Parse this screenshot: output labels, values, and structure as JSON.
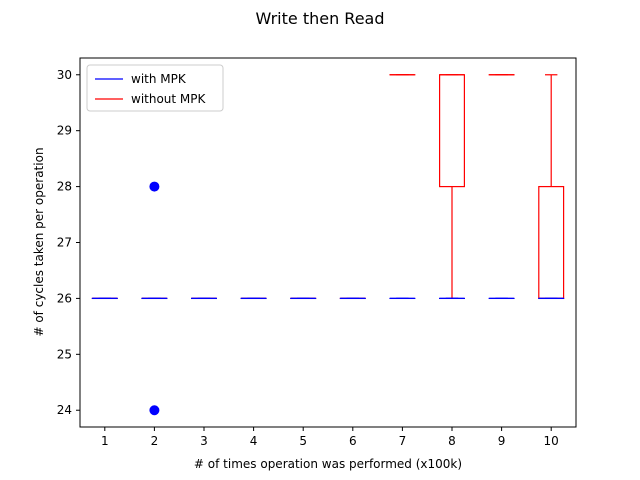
{
  "chart_data": {
    "type": "boxplot",
    "title": "Write then Read",
    "xlabel": "# of times operation was performed (x100k)",
    "ylabel": "# of cycles taken per operation",
    "ylim": [
      23.7,
      30.3
    ],
    "yticks": [
      24,
      25,
      26,
      27,
      28,
      29,
      30
    ],
    "categories": [
      "1",
      "2",
      "3",
      "4",
      "5",
      "6",
      "7",
      "8",
      "9",
      "10"
    ],
    "legend": {
      "location": "upper-left"
    },
    "grid": false,
    "series": [
      {
        "name": "with MPK",
        "color": "#0000ff",
        "boxes": [
          {
            "whislo": 26,
            "q1": 26,
            "med": 26,
            "q3": 26,
            "whishi": 26,
            "fliers": []
          },
          {
            "whislo": 26,
            "q1": 26,
            "med": 26,
            "q3": 26,
            "whishi": 26,
            "fliers": [
              24,
              28
            ]
          },
          {
            "whislo": 26,
            "q1": 26,
            "med": 26,
            "q3": 26,
            "whishi": 26,
            "fliers": []
          },
          {
            "whislo": 26,
            "q1": 26,
            "med": 26,
            "q3": 26,
            "whishi": 26,
            "fliers": []
          },
          {
            "whislo": 26,
            "q1": 26,
            "med": 26,
            "q3": 26,
            "whishi": 26,
            "fliers": []
          },
          {
            "whislo": 26,
            "q1": 26,
            "med": 26,
            "q3": 26,
            "whishi": 26,
            "fliers": []
          },
          {
            "whislo": 26,
            "q1": 26,
            "med": 26,
            "q3": 26,
            "whishi": 26,
            "fliers": []
          },
          {
            "whislo": 26,
            "q1": 26,
            "med": 26,
            "q3": 26,
            "whishi": 26,
            "fliers": []
          },
          {
            "whislo": 26,
            "q1": 26,
            "med": 26,
            "q3": 26,
            "whishi": 26,
            "fliers": []
          },
          {
            "whislo": 26,
            "q1": 26,
            "med": 26,
            "q3": 26,
            "whishi": 26,
            "fliers": []
          }
        ]
      },
      {
        "name": "without MPK",
        "color": "#ff0000",
        "boxes": [
          {
            "whislo": 26,
            "q1": 26,
            "med": 26,
            "q3": 26,
            "whishi": 26,
            "fliers": []
          },
          {
            "whislo": 26,
            "q1": 26,
            "med": 26,
            "q3": 26,
            "whishi": 26,
            "fliers": []
          },
          {
            "whislo": 26,
            "q1": 26,
            "med": 26,
            "q3": 26,
            "whishi": 26,
            "fliers": []
          },
          {
            "whislo": 26,
            "q1": 26,
            "med": 26,
            "q3": 26,
            "whishi": 26,
            "fliers": []
          },
          {
            "whislo": 26,
            "q1": 26,
            "med": 26,
            "q3": 26,
            "whishi": 26,
            "fliers": []
          },
          {
            "whislo": 26,
            "q1": 26,
            "med": 26,
            "q3": 26,
            "whishi": 26,
            "fliers": []
          },
          {
            "whislo": 30,
            "q1": 30,
            "med": 30,
            "q3": 30,
            "whishi": 30,
            "fliers": []
          },
          {
            "whislo": 26,
            "q1": 28,
            "med": 30,
            "q3": 30,
            "whishi": 30,
            "fliers": []
          },
          {
            "whislo": 30,
            "q1": 30,
            "med": 30,
            "q3": 30,
            "whishi": 30,
            "fliers": []
          },
          {
            "whislo": 26,
            "q1": 26,
            "med": 26,
            "q3": 28,
            "whishi": 30,
            "fliers": []
          }
        ]
      }
    ]
  }
}
